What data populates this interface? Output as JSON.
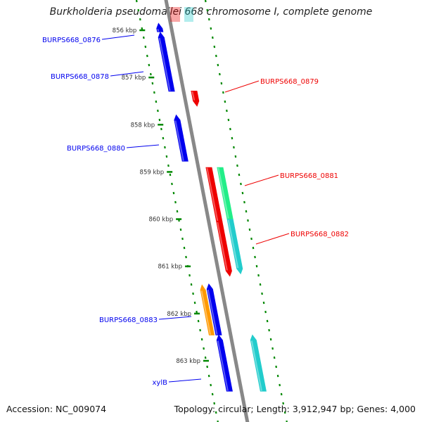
{
  "title": "Burkholderia pseudomallei 668 chromosome I, complete genome",
  "accession": "Accession: NC_009074",
  "topology": "Topology: circular; Length: 3,912,947 bp; Genes: 4,000",
  "colors": {
    "forward_strand": "#0000ee",
    "reverse_strand": "#ee0000",
    "green_feature": "#22ee88",
    "cyan_feature": "#22cccc",
    "orange_feature": "#ff9900",
    "backbone": "#888888",
    "tick": "#008800"
  },
  "ticks": [
    {
      "label": "856 kbp",
      "kbp": 856
    },
    {
      "label": "857 kbp",
      "kbp": 857
    },
    {
      "label": "858 kbp",
      "kbp": 858
    },
    {
      "label": "859 kbp",
      "kbp": 859
    },
    {
      "label": "860 kbp",
      "kbp": 860
    },
    {
      "label": "861 kbp",
      "kbp": 861
    },
    {
      "label": "862 kbp",
      "kbp": 862
    },
    {
      "label": "863 kbp",
      "kbp": 863
    }
  ],
  "features": [
    {
      "strand": "forward",
      "color": "blue",
      "start_kbp": 855.96,
      "end_kbp": 856.04
    },
    {
      "strand": "forward",
      "color": "blue",
      "start_kbp": 856.15,
      "end_kbp": 857.3
    },
    {
      "strand": "reverse",
      "color": "red",
      "start_kbp": 857.28,
      "end_kbp": 857.5
    },
    {
      "strand": "forward",
      "color": "blue",
      "start_kbp": 857.9,
      "end_kbp": 858.78
    },
    {
      "strand": "reverse",
      "color": "red",
      "start_kbp": 858.9,
      "end_kbp": 860.05
    },
    {
      "strand": "reverse",
      "color": "green",
      "start_kbp": 858.9,
      "end_kbp": 860.0
    },
    {
      "strand": "reverse",
      "color": "red",
      "start_kbp": 860.05,
      "end_kbp": 861.1
    },
    {
      "strand": "reverse",
      "color": "cyan",
      "start_kbp": 860.0,
      "end_kbp": 861.05
    },
    {
      "strand": "forward",
      "color": "orange",
      "start_kbp": 861.5,
      "end_kbp": 862.46
    },
    {
      "strand": "forward",
      "color": "blue",
      "start_kbp": 861.48,
      "end_kbp": 862.46
    },
    {
      "strand": "forward",
      "color": "cyan",
      "start_kbp": 862.56,
      "end_kbp": 863.65
    },
    {
      "strand": "forward",
      "color": "blue",
      "start_kbp": 862.56,
      "end_kbp": 863.65
    }
  ],
  "gene_labels": [
    {
      "text": "BURPS668_0876",
      "strand": "forward",
      "color": "blue"
    },
    {
      "text": "BURPS668_0878",
      "strand": "forward",
      "color": "blue"
    },
    {
      "text": "BURPS668_0879",
      "strand": "reverse",
      "color": "red"
    },
    {
      "text": "BURPS668_0880",
      "strand": "forward",
      "color": "blue"
    },
    {
      "text": "BURPS668_0881",
      "strand": "reverse",
      "color": "red"
    },
    {
      "text": "BURPS668_0882",
      "strand": "reverse",
      "color": "red"
    },
    {
      "text": "BURPS668_0883",
      "strand": "forward",
      "color": "blue"
    },
    {
      "text": "xylB",
      "strand": "forward",
      "color": "blue"
    }
  ]
}
